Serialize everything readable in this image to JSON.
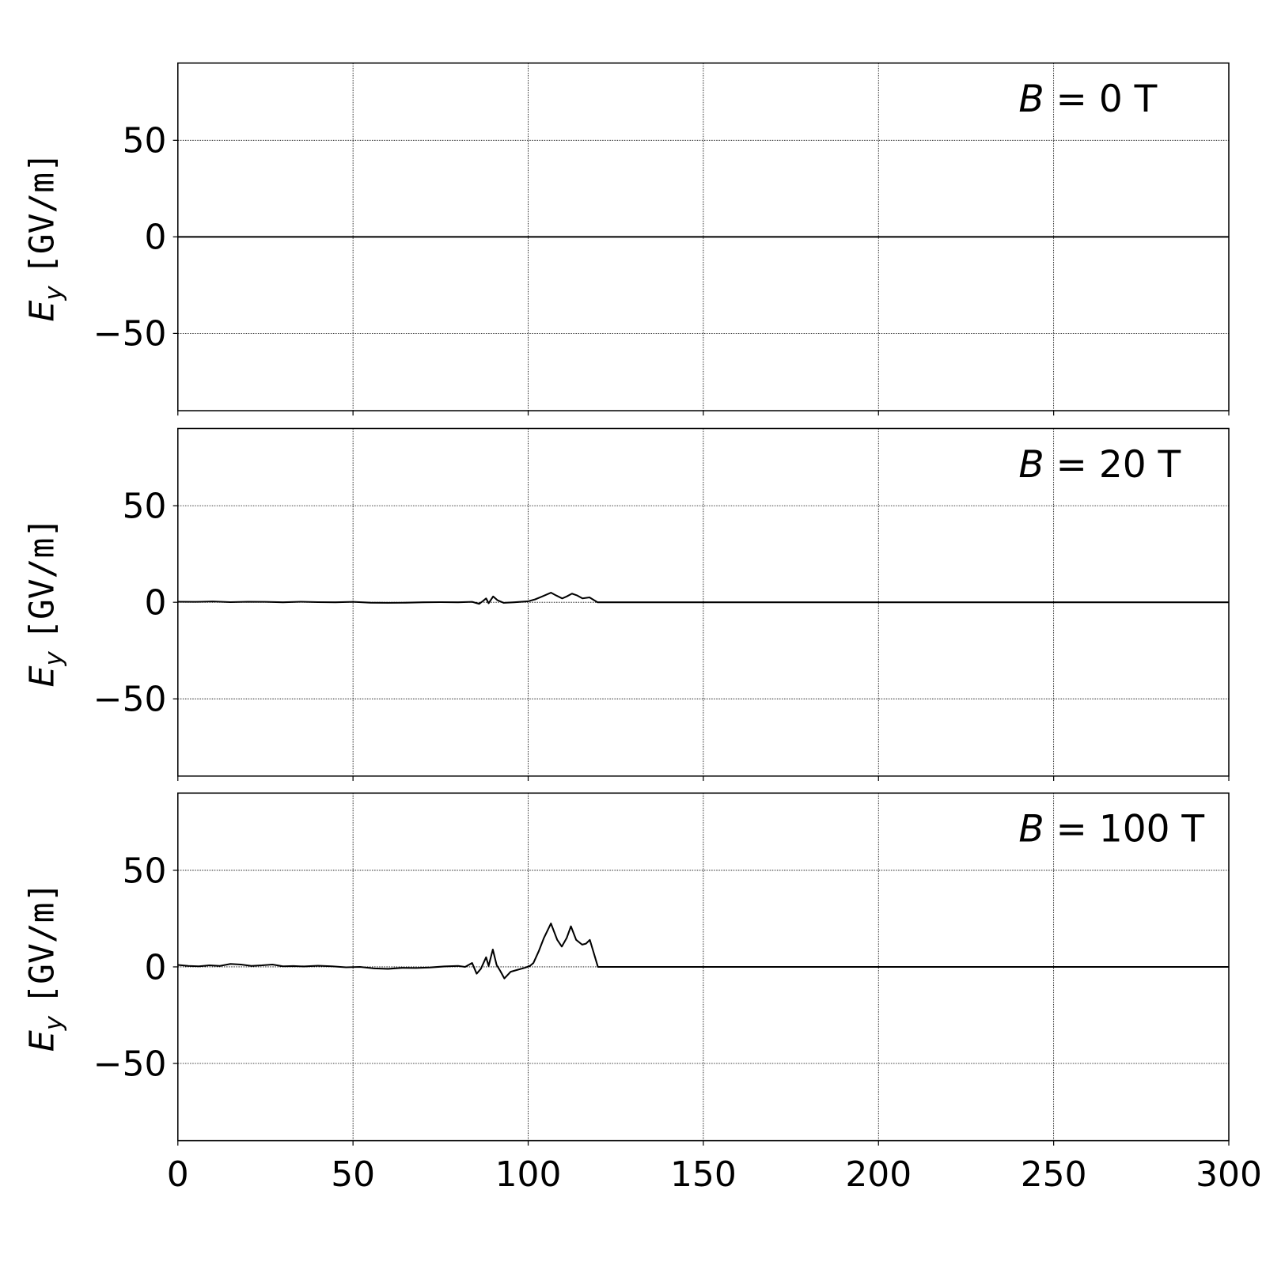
{
  "chart_data": [
    {
      "type": "line",
      "annotation": {
        "var": "B",
        "eq": " = 0 T"
      },
      "ylabel": {
        "main": "E",
        "sub": "y",
        "unit": "[GV/m]"
      },
      "xlim": [
        0,
        300
      ],
      "ylim": [
        -90,
        90
      ],
      "xticks": [
        0,
        50,
        100,
        150,
        200,
        250,
        300
      ],
      "yticks": [
        -50,
        0,
        50
      ],
      "show_xtick_labels": false,
      "grid": true,
      "x": [
        0,
        300
      ],
      "y": [
        0,
        0
      ]
    },
    {
      "type": "line",
      "annotation": {
        "var": "B",
        "eq": " = 20 T"
      },
      "ylabel": {
        "main": "E",
        "sub": "y",
        "unit": "[GV/m]"
      },
      "xlim": [
        0,
        300
      ],
      "ylim": [
        -90,
        90
      ],
      "xticks": [
        0,
        50,
        100,
        150,
        200,
        250,
        300
      ],
      "yticks": [
        -50,
        0,
        50
      ],
      "show_xtick_labels": false,
      "grid": true,
      "x": [
        0,
        5,
        10,
        15,
        20,
        25,
        30,
        35,
        40,
        45,
        50,
        55,
        60,
        65,
        70,
        75,
        80,
        84,
        86,
        87,
        88,
        88.7,
        90,
        91.3,
        93,
        96,
        100,
        102,
        104,
        106.5,
        108,
        109.7,
        111,
        112.5,
        114,
        115.5,
        117.5,
        118.7,
        119.8,
        300
      ],
      "y": [
        0.3,
        0.2,
        0.4,
        0.1,
        0.3,
        0.2,
        0,
        0.3,
        0.1,
        0,
        0.2,
        -0.2,
        -0.3,
        -0.2,
        0,
        0.1,
        0,
        0.2,
        -0.8,
        0.5,
        2,
        -0.5,
        3,
        1,
        -0.3,
        0,
        0.5,
        1.5,
        3,
        5,
        3.5,
        2,
        3,
        4.5,
        3.5,
        2,
        2.5,
        1.2,
        0,
        0
      ]
    },
    {
      "type": "line",
      "annotation": {
        "var": "B",
        "eq": " = 100 T"
      },
      "ylabel": {
        "main": "E",
        "sub": "y",
        "unit": "[GV/m]"
      },
      "xlim": [
        0,
        300
      ],
      "ylim": [
        -90,
        90
      ],
      "xticks": [
        0,
        50,
        100,
        150,
        200,
        250,
        300
      ],
      "yticks": [
        -50,
        0,
        50
      ],
      "show_xtick_labels": true,
      "grid": true,
      "x": [
        0,
        3,
        6,
        9,
        12,
        15,
        18,
        21,
        24,
        27,
        30,
        33,
        36,
        40,
        44,
        48,
        52,
        56,
        60,
        64,
        68,
        72,
        76,
        80,
        82,
        84,
        85.3,
        86.5,
        88,
        88.7,
        89.9,
        91,
        92,
        93.2,
        95,
        97,
        99,
        100.5,
        101.5,
        103,
        104.5,
        106.5,
        108.3,
        109.6,
        111,
        112.2,
        113.7,
        115.4,
        116.5,
        117.6,
        118.6,
        119.9,
        300
      ],
      "y": [
        1,
        0.5,
        0.3,
        0.8,
        0.5,
        1.5,
        1.2,
        0.5,
        0.8,
        1.2,
        0.3,
        0.4,
        0.2,
        0.6,
        0.3,
        -0.2,
        0,
        -0.8,
        -1,
        -0.5,
        -0.6,
        -0.3,
        0.2,
        0.5,
        0,
        2,
        -3.5,
        -1,
        5,
        0.5,
        9,
        1,
        -2,
        -6,
        -2.5,
        -1.5,
        -0.5,
        0.5,
        2,
        8,
        15,
        22.5,
        14,
        10.5,
        15,
        21,
        14,
        11.5,
        12,
        14,
        8,
        0,
        0
      ]
    }
  ]
}
